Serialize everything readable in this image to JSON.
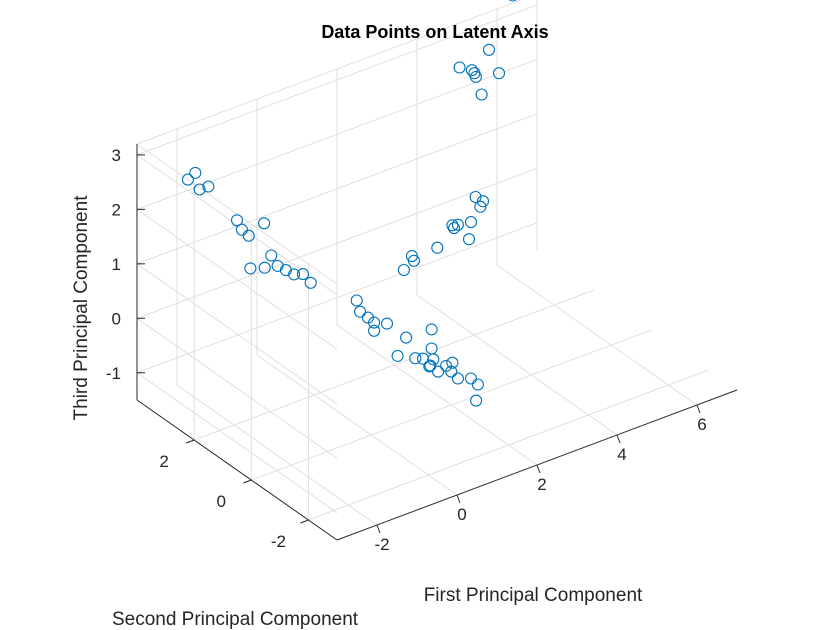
{
  "chart_data": {
    "type": "scatter3d",
    "title": "Data Points on Latent Axis",
    "xlabel": "First Principal Component",
    "ylabel": "Second Principal Component",
    "zlabel": "Third Principal Component",
    "xlim": [
      -3,
      7
    ],
    "ylim": [
      -3,
      4
    ],
    "zlim": [
      -1.5,
      3.2
    ],
    "xticks": [
      "-2",
      "0",
      "2",
      "4",
      "6"
    ],
    "yticks": [
      "-2",
      "0",
      "2"
    ],
    "zticks": [
      "-1",
      "0",
      "1",
      "2",
      "3"
    ],
    "grid": true,
    "marker": "open-circle",
    "color": "#0072BD",
    "points": [
      [
        -2.05,
        3.55,
        2.45
      ],
      [
        -1.9,
        3.5,
        2.55
      ],
      [
        -1.9,
        3.35,
        2.3
      ],
      [
        -1.75,
        3.25,
        2.35
      ],
      [
        -1.5,
        2.6,
        1.9
      ],
      [
        -1.45,
        2.5,
        1.75
      ],
      [
        -1.35,
        2.4,
        1.65
      ],
      [
        -1.0,
        2.35,
        1.8
      ],
      [
        -1.45,
        2.2,
        1.15
      ],
      [
        -1.2,
        2.05,
        1.15
      ],
      [
        -1.0,
        2.1,
        1.3
      ],
      [
        -0.95,
        1.95,
        1.15
      ],
      [
        -0.85,
        1.8,
        1.1
      ],
      [
        -0.75,
        1.65,
        1.05
      ],
      [
        -0.6,
        1.55,
        1.05
      ],
      [
        -0.55,
        1.35,
        0.95
      ],
      [
        -0.15,
        0.3,
        0.9
      ],
      [
        -0.1,
        0.25,
        0.7
      ],
      [
        -0.05,
        0.05,
        0.65
      ],
      [
        0.0,
        -0.1,
        0.6
      ],
      [
        0.0,
        -0.1,
        0.45
      ],
      [
        0.25,
        -0.2,
        0.55
      ],
      [
        0.3,
        -0.8,
        0.5
      ],
      [
        0.05,
        -0.85,
        0.25
      ],
      [
        0.35,
        -1.05,
        0.2
      ],
      [
        0.4,
        -1.25,
        0.25
      ],
      [
        0.55,
        -1.3,
        0.1
      ],
      [
        0.6,
        -1.5,
        0.05
      ],
      [
        0.45,
        -1.4,
        0.15
      ],
      [
        0.55,
        -1.4,
        0.25
      ],
      [
        0.65,
        -1.2,
        0.35
      ],
      [
        0.65,
        -1.2,
        0.7
      ],
      [
        0.8,
        -1.5,
        0.1
      ],
      [
        0.75,
        -1.75,
        0.1
      ],
      [
        0.85,
        -1.65,
        0.2
      ],
      [
        0.95,
        -1.7,
        -0.1
      ],
      [
        1.1,
        -1.95,
        -0.05
      ],
      [
        1.2,
        -2.05,
        -0.15
      ],
      [
        1.05,
        -2.2,
        -0.35
      ],
      [
        3.1,
        3.2,
        -0.5
      ],
      [
        3.35,
        3.2,
        -0.4
      ],
      [
        3.3,
        3.2,
        -0.3
      ],
      [
        3.15,
        2.1,
        0.3
      ],
      [
        3.6,
        2.2,
        0.55
      ],
      [
        3.5,
        2.0,
        0.6
      ],
      [
        3.7,
        2.15,
        0.55
      ],
      [
        3.85,
        1.9,
        0.65
      ],
      [
        3.8,
        1.9,
        0.35
      ],
      [
        4.3,
        2.2,
        0.7
      ],
      [
        3.75,
        1.6,
        1.25
      ],
      [
        3.9,
        1.55,
        1.15
      ],
      [
        4.6,
        3.35,
        2.75
      ],
      [
        4.8,
        3.2,
        2.7
      ],
      [
        4.9,
        3.2,
        2.55
      ],
      [
        4.9,
        3.25,
        2.6
      ],
      [
        4.9,
        3.0,
        2.3
      ],
      [
        5.3,
        2.95,
        2.6
      ],
      [
        5.3,
        3.3,
        2.9
      ],
      [
        6.0,
        3.45,
        3.65
      ]
    ]
  }
}
